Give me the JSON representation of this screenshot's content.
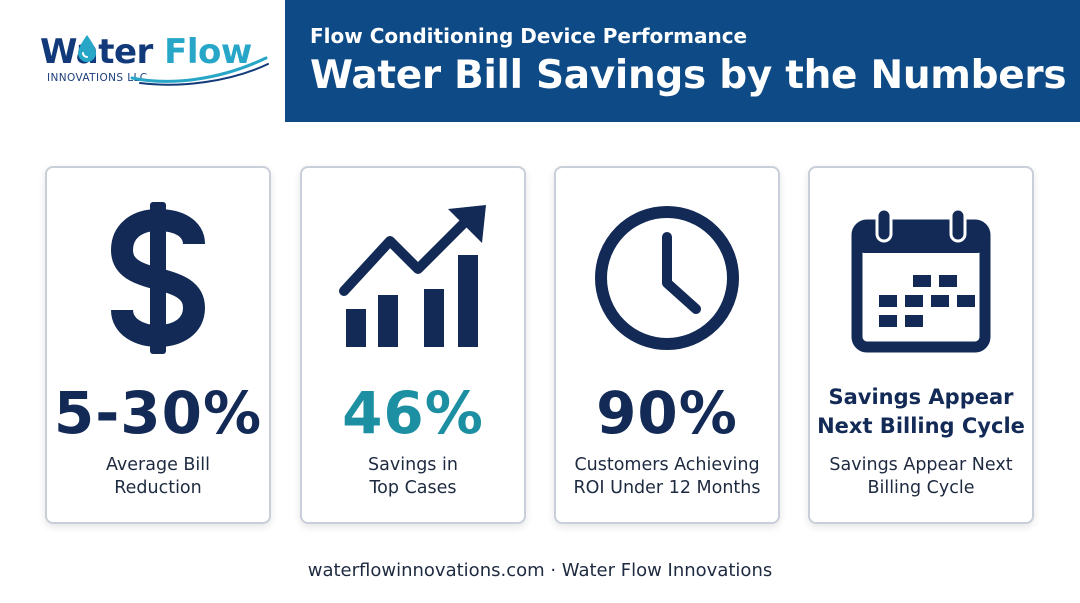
{
  "logo": {
    "word_part1": "Water",
    "word_part2": "Flow",
    "tagline": "INNOVATIONS LLC",
    "icon": "water-drop-icon",
    "colors": {
      "navy": "#123a7a",
      "teal": "#27a6c8"
    }
  },
  "header": {
    "subtitle": "Flow Conditioning Device Performance",
    "title": "Water Bill Savings by the Numbers",
    "background": "#0e4b86"
  },
  "cards": [
    {
      "icon": "dollar-sign-icon",
      "stat": "5-30%",
      "stat_color": "#122a55",
      "caption_line1": "Average Bill",
      "caption_line2": "Reduction"
    },
    {
      "icon": "growth-chart-icon",
      "stat": "46%",
      "stat_color": "#1d8fa3",
      "caption_line1": "Savings in",
      "caption_line2": "Top Cases"
    },
    {
      "icon": "clock-icon",
      "stat": "90%",
      "stat_color": "#122a55",
      "caption_line1": "Customers Achieving",
      "caption_line2": "ROI Under 12 Months"
    },
    {
      "icon": "calendar-icon",
      "stat_line1": "Savings Appear",
      "stat_line2": "Next Billing Cycle",
      "caption_line1": "Savings Appear Next",
      "caption_line2": "Billing Cycle"
    }
  ],
  "footer": {
    "text": "waterflowinnovations.com · Water Flow Innovations"
  }
}
